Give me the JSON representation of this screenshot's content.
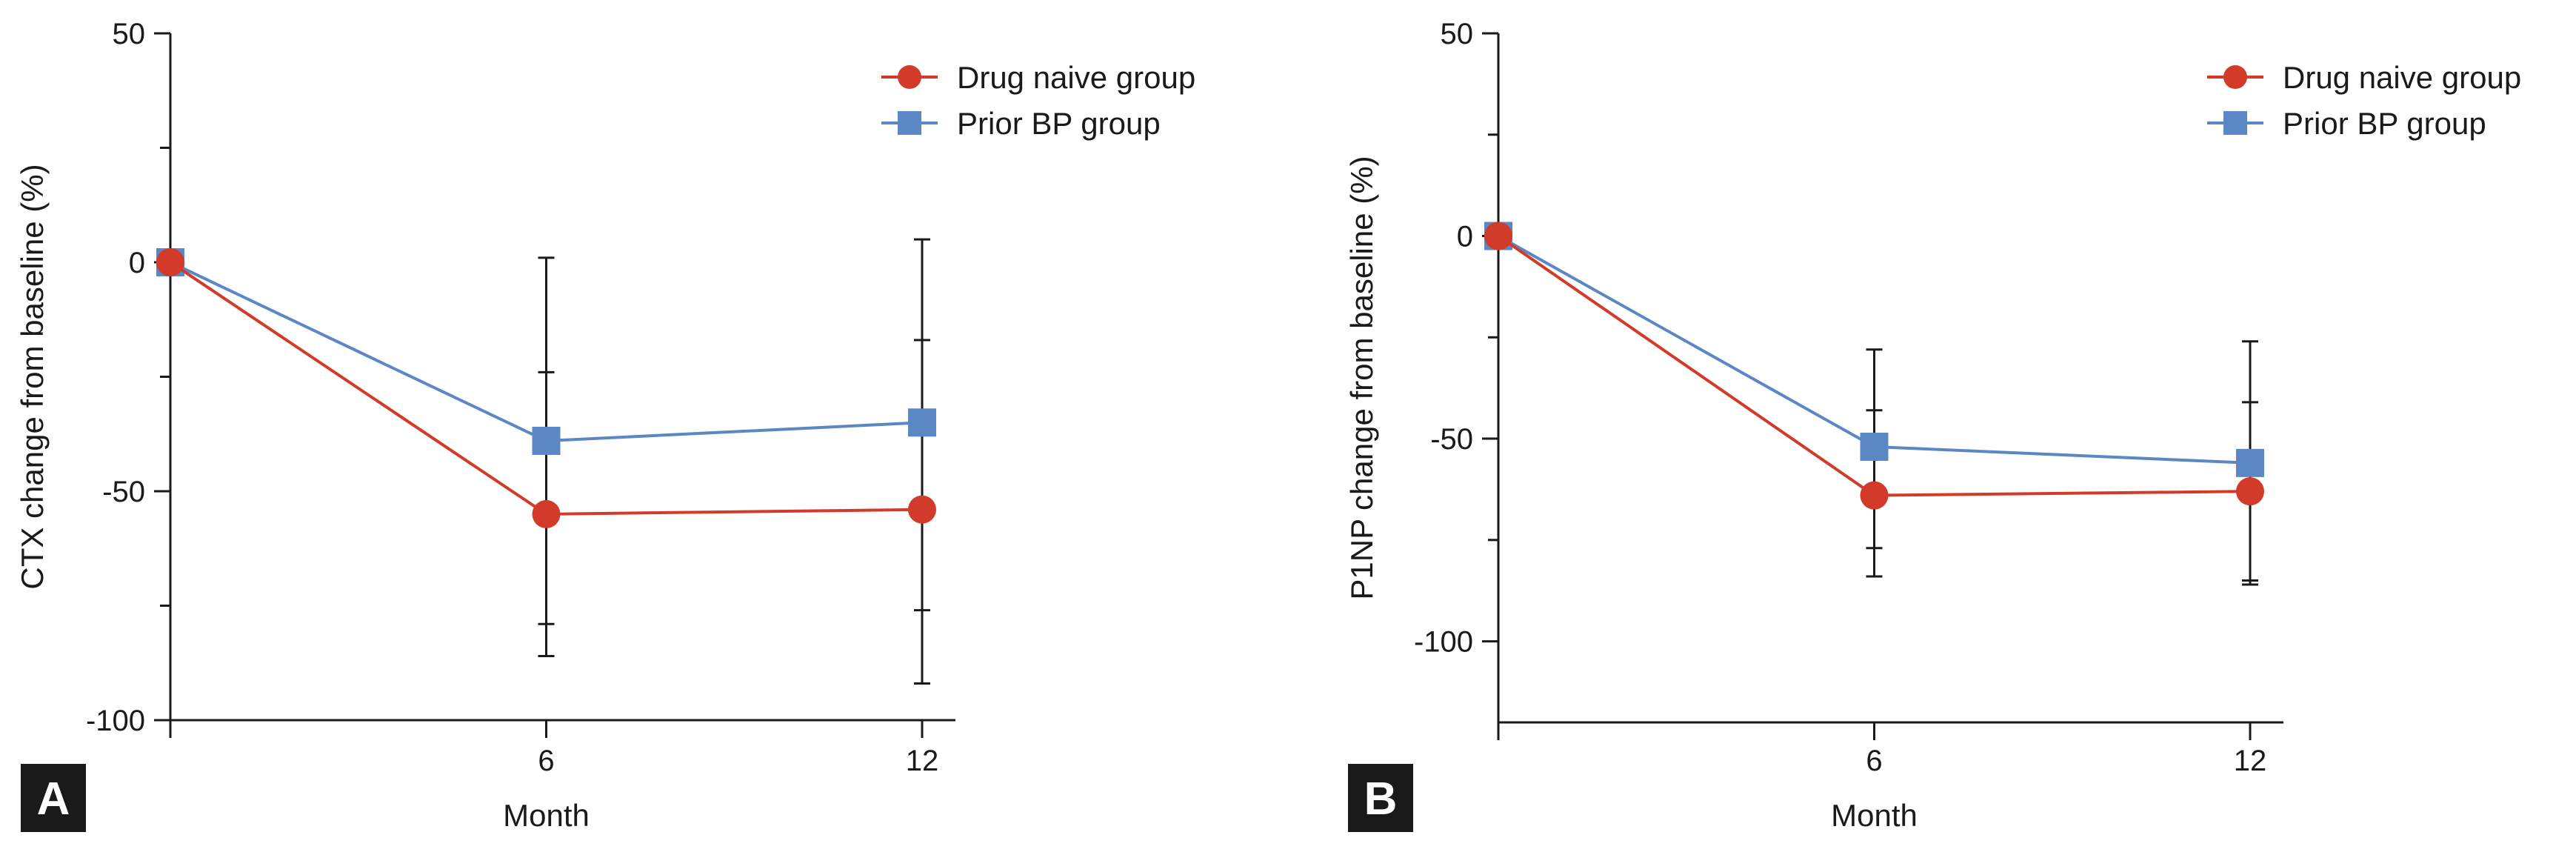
{
  "colors": {
    "drug_naive": "#d23b2a",
    "prior_bp": "#5b87c4",
    "axis": "#1a1a1a",
    "panel_bg": "#1a1a1a"
  },
  "chart_data": [
    {
      "panel": "A",
      "type": "line",
      "xlabel": "Month",
      "ylabel": "CTX change from baseline (%)",
      "x": [
        0,
        6,
        12
      ],
      "x_tick_labels": [
        "6",
        "12"
      ],
      "xlim": [
        0,
        12
      ],
      "ylim": [
        -100,
        50
      ],
      "y_ticks": [
        50,
        0,
        -50,
        -100
      ],
      "grid": false,
      "legend_position": "top-right",
      "series": [
        {
          "name": "Drug naive group",
          "marker": "circle",
          "color_key": "drug_naive",
          "values": [
            0,
            -55,
            -54
          ],
          "error_low": [
            null,
            -86,
            -92
          ],
          "error_high": [
            null,
            -24,
            -17
          ]
        },
        {
          "name": "Prior BP group",
          "marker": "square",
          "color_key": "prior_bp",
          "values": [
            0,
            -39,
            -35
          ],
          "error_low": [
            null,
            -79,
            -76
          ],
          "error_high": [
            null,
            1,
            5
          ]
        }
      ]
    },
    {
      "panel": "B",
      "type": "line",
      "xlabel": "Month",
      "ylabel": "P1NP change from baseline (%)",
      "x": [
        0,
        6,
        12
      ],
      "x_tick_labels": [
        "6",
        "12"
      ],
      "xlim": [
        0,
        12
      ],
      "ylim": [
        -120,
        50
      ],
      "y_ticks": [
        50,
        0,
        -50,
        -100
      ],
      "grid": false,
      "legend_position": "top-right",
      "series": [
        {
          "name": "Drug naive group",
          "marker": "circle",
          "color_key": "drug_naive",
          "values": [
            0,
            -64,
            -63
          ],
          "error_low": [
            null,
            -84,
            -86
          ],
          "error_high": [
            null,
            -43,
            -41
          ]
        },
        {
          "name": "Prior BP group",
          "marker": "square",
          "color_key": "prior_bp",
          "values": [
            0,
            -52,
            -56
          ],
          "error_low": [
            null,
            -77,
            -85
          ],
          "error_high": [
            null,
            -28,
            -26
          ]
        }
      ]
    }
  ]
}
